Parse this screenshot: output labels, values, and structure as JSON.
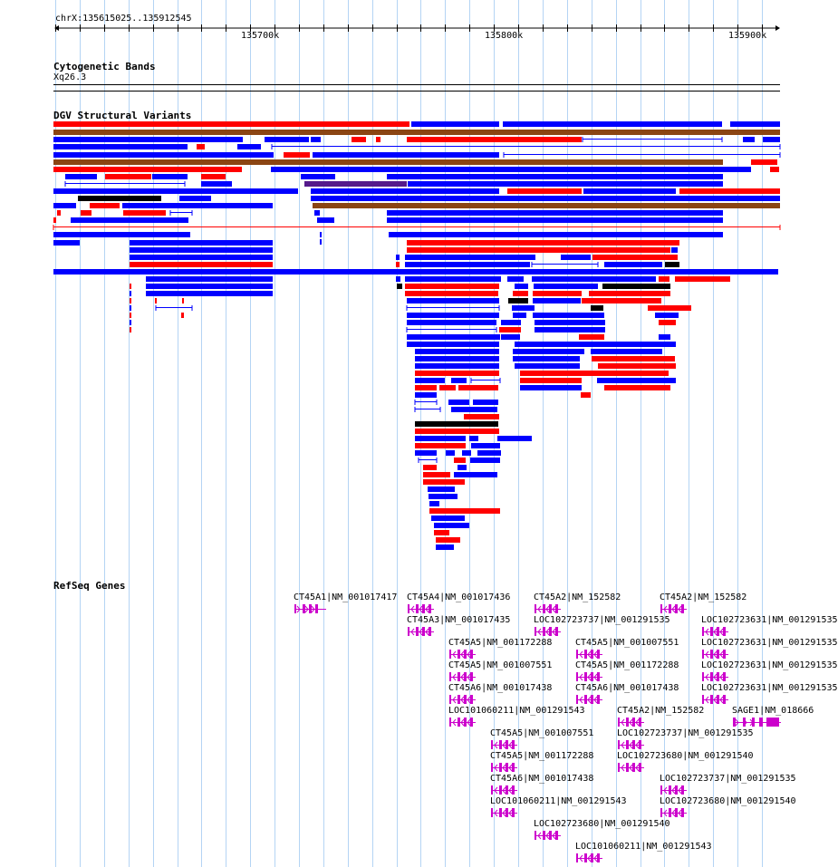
{
  "ruler": {
    "location": "chrX:135615025..135912545",
    "ticks": [
      "135700k",
      "135800k",
      "135900k"
    ]
  },
  "tracks": {
    "cytobands": {
      "title": "Cytogenetic Bands",
      "band": "Xq26.3"
    },
    "dgv": {
      "title": "DGV Structural Variants"
    },
    "refseq": {
      "title": "RefSeq Genes"
    }
  },
  "colors": {
    "gain": "#ff0000",
    "loss": "#0000ff",
    "gain_loss": "#8b4513",
    "complex": "#000000",
    "inversion": "#551a8b",
    "gene": "#cc00cc",
    "grid": "#b4d4f4"
  },
  "genes": [
    "CT45A1|NM_001017417",
    "CT45A4|NM_001017436",
    "CT45A2|NM_152582",
    "CT45A2|NM_152582",
    "CT45A3|NM_001017435",
    "LOC102723737|NM_001291535",
    "LOC102723631|NM_001291535",
    "CT45A5|NM_001172288",
    "CT45A5|NM_001007551",
    "LOC102723631|NM_001291535",
    "CT45A5|NM_001007551",
    "CT45A5|NM_001172288",
    "LOC102723631|NM_001291535",
    "CT45A6|NM_001017438",
    "CT45A6|NM_001017438",
    "LOC102723631|NM_001291535",
    "LOC101060211|NM_001291543",
    "CT45A2|NM_152582",
    "SAGE1|NM_018666",
    "CT45A5|NM_001007551",
    "LOC102723737|NM_001291535",
    "CT45A5|NM_001172288",
    "LOC102723680|NM_001291540",
    "CT45A6|NM_001017438",
    "LOC102723737|NM_001291535",
    "LOC101060211|NM_001291543",
    "LOC102723680|NM_001291540",
    "LOC102723680|NM_001291540",
    "LOC101060211|NM_001291543"
  ]
}
